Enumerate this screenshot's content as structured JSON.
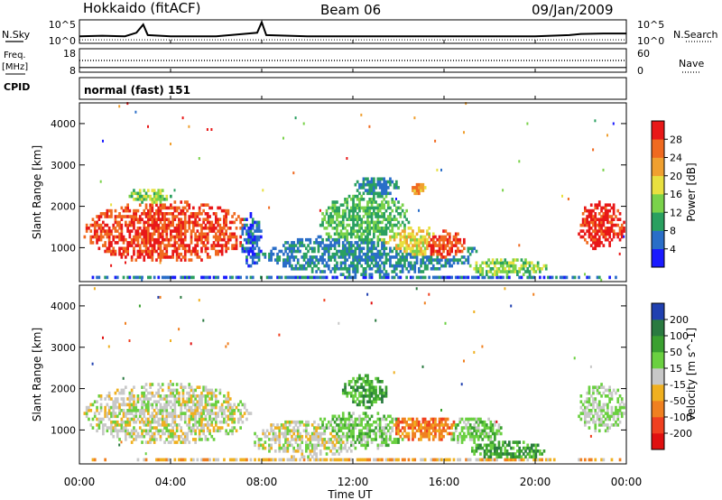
{
  "header": {
    "station": "Hokkaido (fitACF)",
    "beam": "Beam 06",
    "date": "09/Jan/2009"
  },
  "side_labels": {
    "nsky": "N.Sky",
    "freq": "Freq.",
    "mhz": "[MHz]",
    "cpid": "CPID",
    "nsearch": "N.Search",
    "nave": "Nave",
    "cpid_text": "normal (fast) 151"
  },
  "chart_data": [
    {
      "type": "line",
      "name": "noise-panel",
      "left_ticks": [
        "10^5",
        "10^0"
      ],
      "right_ticks": [
        "10^5",
        "10^0"
      ],
      "x": [
        0,
        1,
        2,
        2.5,
        2.8,
        3,
        4,
        6,
        7.8,
        8,
        8.2,
        10,
        12,
        14,
        16,
        18,
        20,
        21.5,
        22,
        23,
        24
      ],
      "sky": [
        0.3,
        0.32,
        0.3,
        0.45,
        0.8,
        0.35,
        0.3,
        0.3,
        0.45,
        0.9,
        0.35,
        0.3,
        0.3,
        0.3,
        0.3,
        0.3,
        0.3,
        0.35,
        0.4,
        0.42,
        0.42
      ],
      "search_level": 0.15
    },
    {
      "type": "line",
      "name": "freq-nave-panel",
      "left_ticks": [
        "18",
        "8"
      ],
      "right_ticks": [
        "60",
        "0"
      ],
      "freq_mhz": 10,
      "nave_level": 30
    },
    {
      "type": "heatmap",
      "name": "power",
      "ylabel": "Slant Range [km]",
      "ylim": [
        180,
        4500
      ],
      "yticks": [
        "1000",
        "2000",
        "3000",
        "4000"
      ],
      "yticks_values": [
        1000,
        2000,
        3000,
        4000
      ],
      "colorbar_label": "Power [dB]",
      "colorbar_ticks": [
        "4",
        "8",
        "12",
        "16",
        "20",
        "24",
        "28"
      ],
      "colors": [
        "#1a1aff",
        "#2a6ec8",
        "#2aa060",
        "#7ad24a",
        "#e8e040",
        "#f0a030",
        "#f06a20",
        "#e81818"
      ],
      "blobs": [
        {
          "t0": 0.1,
          "t1": 7.5,
          "r0": 600,
          "r1": 2100,
          "level": 6.5
        },
        {
          "t0": 2.0,
          "t1": 6.0,
          "r0": 900,
          "r1": 1700,
          "level": 7
        },
        {
          "t0": 7.0,
          "t1": 8.0,
          "r0": 500,
          "r1": 1800,
          "level": 1
        },
        {
          "t0": 8.0,
          "t1": 17.5,
          "r0": 300,
          "r1": 1300,
          "level": 1.5
        },
        {
          "t0": 10.5,
          "t1": 14.5,
          "r0": 900,
          "r1": 2300,
          "level": 2.5
        },
        {
          "t0": 12.5,
          "t1": 16.5,
          "r0": 500,
          "r1": 1500,
          "level": 4
        },
        {
          "t0": 14.5,
          "t1": 17.0,
          "r0": 600,
          "r1": 1400,
          "level": 6.5
        },
        {
          "t0": 17.0,
          "t1": 20.5,
          "r0": 250,
          "r1": 700,
          "level": 3
        },
        {
          "t0": 12.0,
          "t1": 14.0,
          "r0": 2200,
          "r1": 2700,
          "level": 1.5
        },
        {
          "t0": 14.5,
          "t1": 15.2,
          "r0": 2250,
          "r1": 2550,
          "level": 5
        },
        {
          "t0": 21.8,
          "t1": 23.9,
          "r0": 900,
          "r1": 2100,
          "level": 7
        },
        {
          "t0": 2.0,
          "t1": 4.0,
          "r0": 2000,
          "r1": 2400,
          "level": 3
        },
        {
          "t0": 0.3,
          "t1": 23.9,
          "r0": 180,
          "r1": 300,
          "level": 1
        }
      ]
    },
    {
      "type": "heatmap",
      "name": "velocity",
      "ylabel": "Slant Range [km]",
      "ylim": [
        180,
        4500
      ],
      "yticks": [
        "1000",
        "2000",
        "3000",
        "4000"
      ],
      "yticks_values": [
        1000,
        2000,
        3000,
        4000
      ],
      "colorbar_label": "Velocity [m s^-1]",
      "colorbar_ticks": [
        "200",
        "100",
        "50",
        "15",
        "-15",
        "-50",
        "-100",
        "-200"
      ],
      "colors": [
        "#2040b0",
        "#2a7a40",
        "#3aa030",
        "#6ad040",
        "#c8c8c8",
        "#f0b020",
        "#f08020",
        "#f04020",
        "#e01010"
      ],
      "blobs": [
        {
          "t0": 0.1,
          "t1": 7.5,
          "r0": 600,
          "r1": 2100,
          "level": 4
        },
        {
          "t0": 7.5,
          "t1": 12.5,
          "r0": 300,
          "r1": 1200,
          "level": 4
        },
        {
          "t0": 10.0,
          "t1": 14.5,
          "r0": 500,
          "r1": 1400,
          "level": 3
        },
        {
          "t0": 11.5,
          "t1": 13.5,
          "r0": 1500,
          "r1": 2300,
          "level": 2
        },
        {
          "t0": 13.0,
          "t1": 17.0,
          "r0": 700,
          "r1": 1300,
          "level": 6
        },
        {
          "t0": 16.0,
          "t1": 18.5,
          "r0": 600,
          "r1": 1300,
          "level": 3
        },
        {
          "t0": 17.0,
          "t1": 20.5,
          "r0": 250,
          "r1": 700,
          "level": 2
        },
        {
          "t0": 21.8,
          "t1": 23.9,
          "r0": 900,
          "r1": 2100,
          "level": 3.5
        },
        {
          "t0": 0.3,
          "t1": 23.9,
          "r0": 180,
          "r1": 300,
          "level": 5
        }
      ]
    }
  ],
  "x_axis": {
    "label": "Time UT",
    "ticks": [
      "00:00",
      "04:00",
      "08:00",
      "12:00",
      "16:00",
      "20:00",
      "00:00"
    ],
    "tick_hours": [
      0,
      4,
      8,
      12,
      16,
      20,
      24
    ]
  }
}
